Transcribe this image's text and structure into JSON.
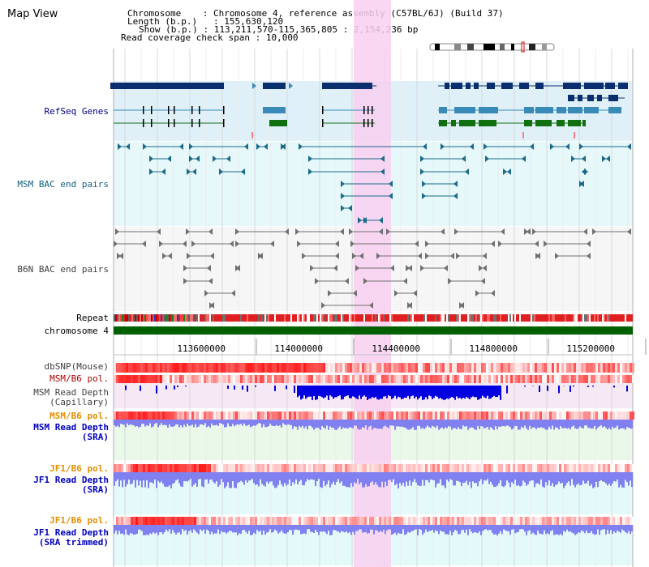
{
  "header": {
    "title": "Map View",
    "chromosome_key": "Chromosome",
    "chromosome_val": ": Chromosome 4, reference assembly (C57BL/6J) (Build 37)",
    "length_key": "Length (b.p.)",
    "length_val": ": 155,630,120",
    "show_key": "Show (b.p.)",
    "show_val": ": 113,211,570-115,365,805 : 2,154,236 bp",
    "span_key": "Read coverage check span",
    "span_val": ": 10,000"
  },
  "tracks": {
    "refseq": "RefSeq Genes",
    "msm_bac": "MSM BAC end pairs",
    "b6n_bac": "B6N BAC end pairs",
    "repeat": "Repeat",
    "chromosome": "chromosome 4",
    "dbsnp": "dbSNP(Mouse)",
    "msm_pol": "MSM/B6 pol.",
    "msm_depth_cap_1": "MSM Read Depth",
    "msm_depth_cap_2": "(Capillary)",
    "msm_pol2": "MSM/B6 pol.",
    "msm_depth_sra_1": "MSM Read Depth",
    "msm_depth_sra_2": "(SRA)",
    "jf1_pol": "JF1/B6 pol.",
    "jf1_depth_1": "JF1 Read Depth",
    "jf1_depth_2": "(SRA)",
    "jf1_pol2": "JF1/B6 pol.",
    "jf1_trim_1": "JF1 Read Depth",
    "jf1_trim_2": "(SRA trimmed)"
  },
  "axis": {
    "ticks": [
      "113600000",
      "114000000",
      "114400000",
      "114800000",
      "115200000"
    ]
  },
  "colors": {
    "refseq_dark": "#0a2e6e",
    "refseq_mid": "#3a8ab8",
    "refseq_green": "#107010",
    "msm_bac": "#1a6a8a",
    "b6n_bac": "#707070",
    "highlight": "#f8d0f0",
    "chromosome": "#006000",
    "depth_blue": "#0000e0",
    "depth_light": "#8080f0"
  }
}
